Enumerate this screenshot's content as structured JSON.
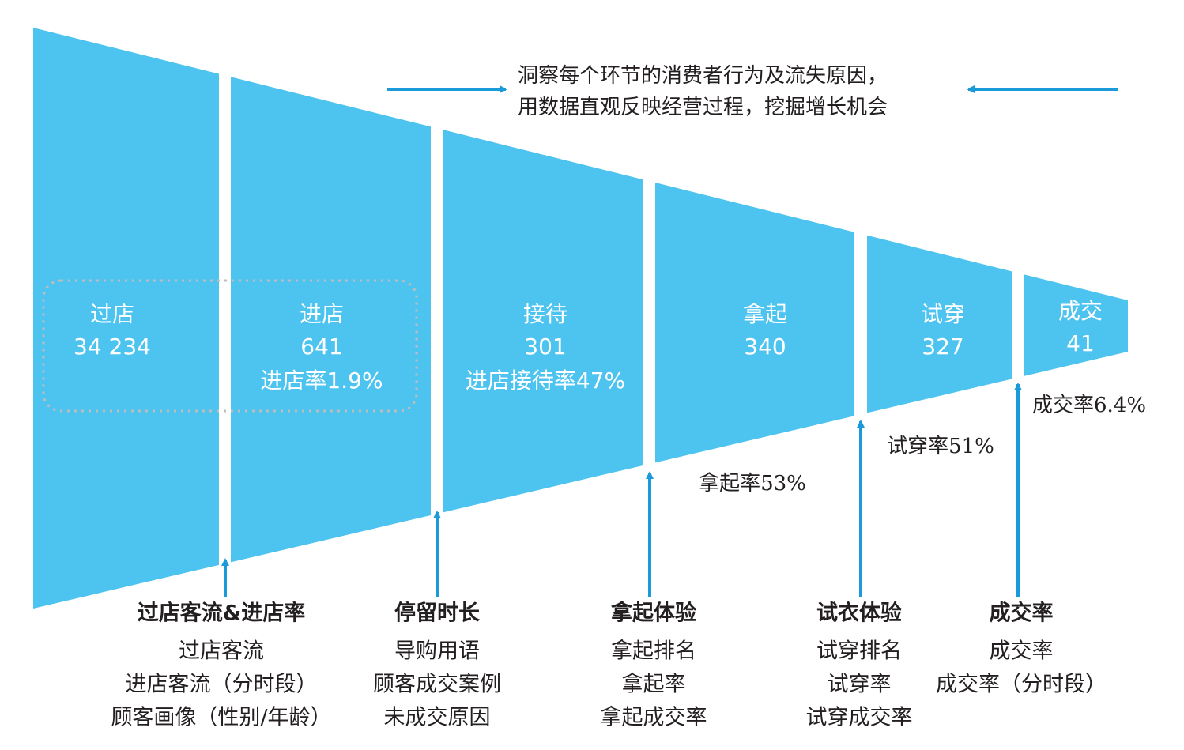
{
  "header": {
    "lines": [
      "洞察每个环节的消费者行为及流失原因，",
      "用数据直观反映经营过程，挖掘增长机会"
    ]
  },
  "stages": [
    {
      "label": "过店",
      "count": "34 234"
    },
    {
      "label": "进店",
      "count": "641",
      "rate": "进店率1.9%"
    },
    {
      "label": "接待",
      "count": "301",
      "rate": "进店接待率47%"
    },
    {
      "label": "拿起",
      "count": "340"
    },
    {
      "label": "试穿",
      "count": "327"
    },
    {
      "label": "成交",
      "count": "41"
    }
  ],
  "side_rates": [
    "拿起率53%",
    "试穿率51%",
    "成交率6.4%"
  ],
  "metrics": [
    {
      "title": "过店客流&进店率",
      "items": [
        "过店客流",
        "进店客流（分时段）",
        "顾客画像（性别/年龄）"
      ]
    },
    {
      "title": "停留时长",
      "items": [
        "导购用语",
        "顾客成交案例",
        "未成交原因"
      ]
    },
    {
      "title": "拿起体验",
      "items": [
        "拿起排名",
        "拿起率",
        "拿起成交率"
      ]
    },
    {
      "title": "试衣体验",
      "items": [
        "试穿排名",
        "试穿率",
        "试穿成交率"
      ]
    },
    {
      "title": "成交率",
      "items": [
        "成交率",
        "成交率（分时段）"
      ]
    }
  ]
}
